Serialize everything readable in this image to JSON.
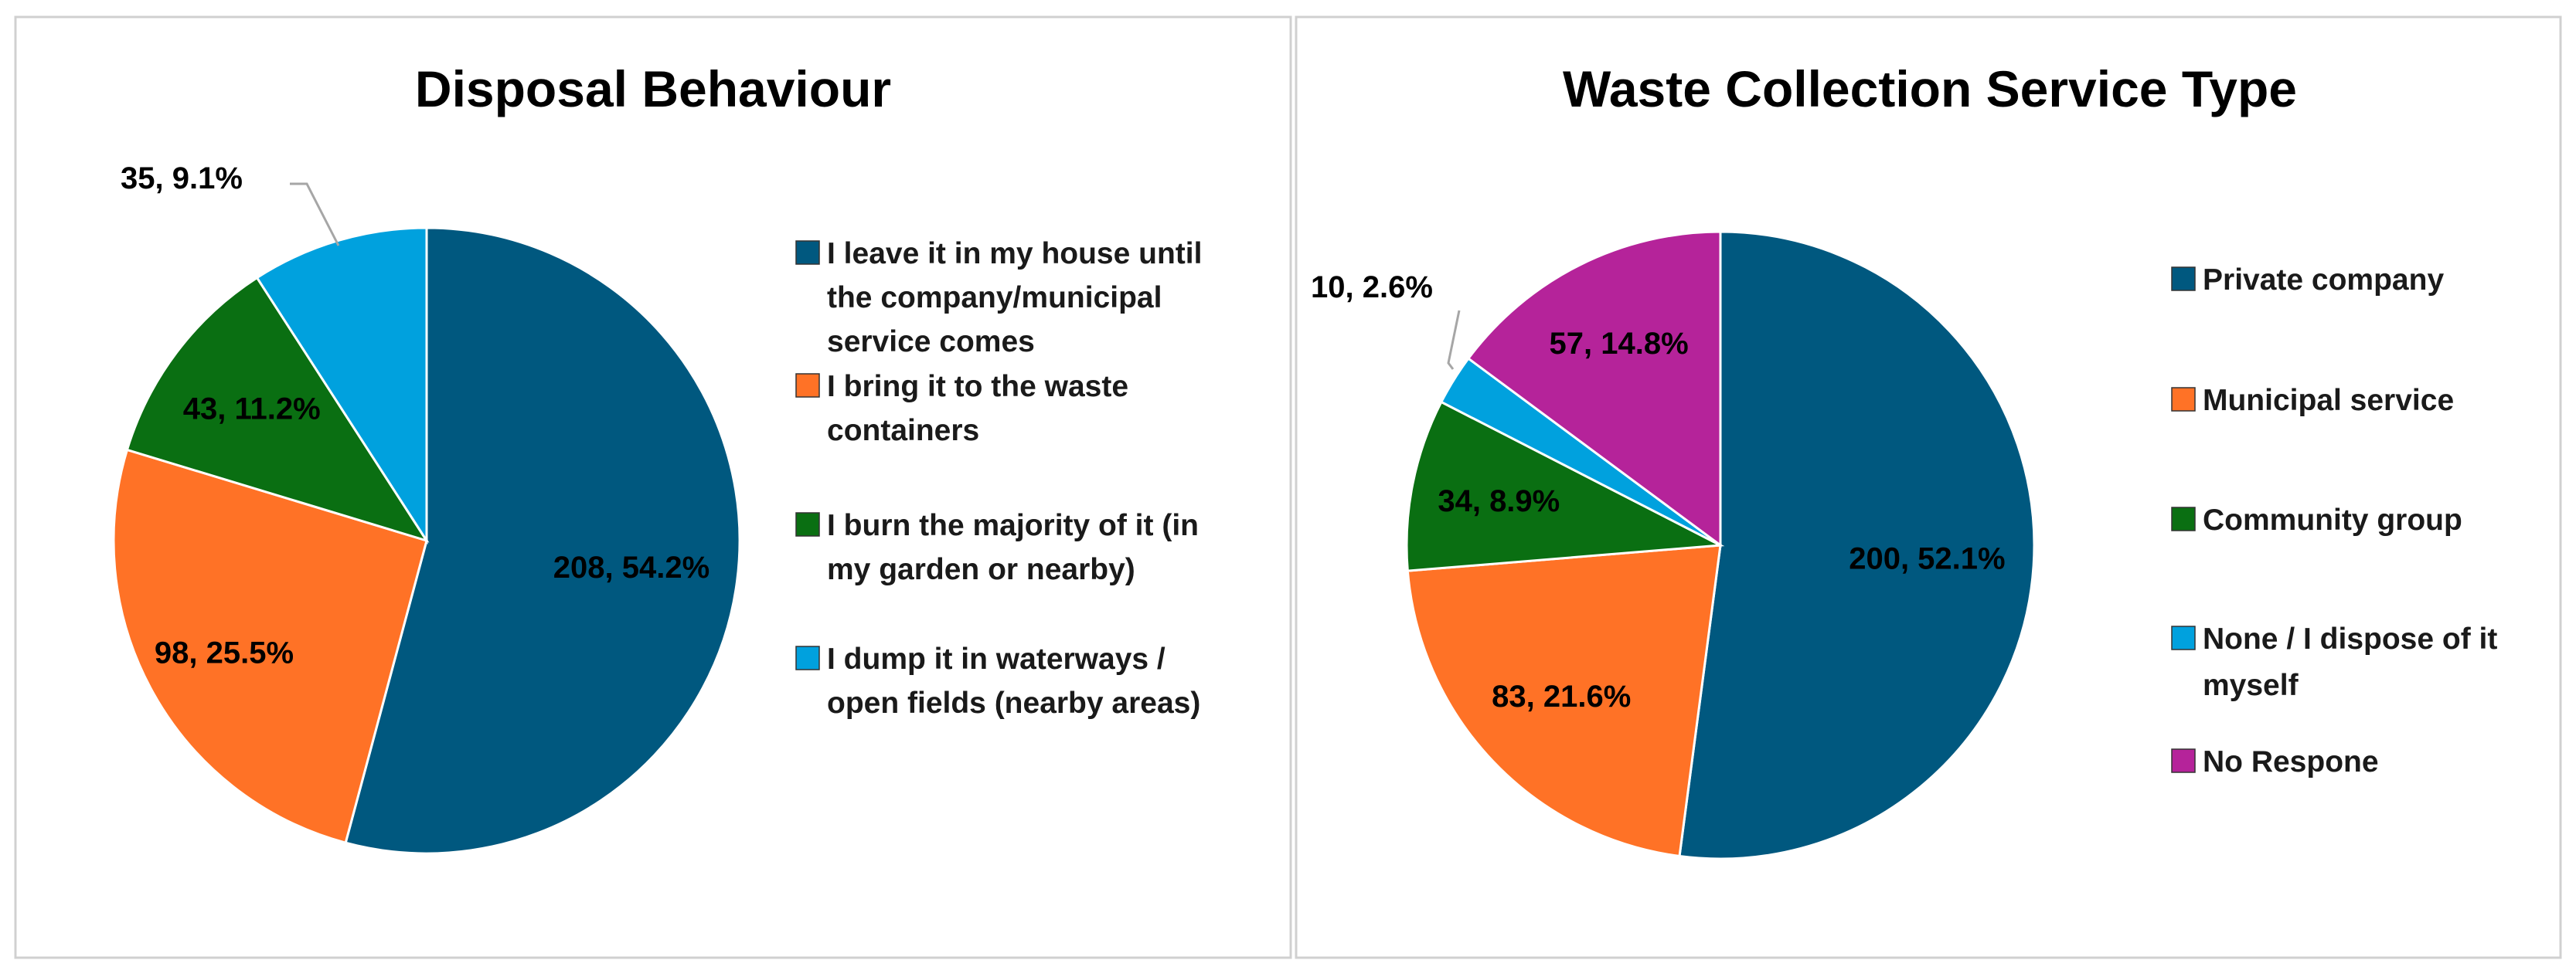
{
  "chart_data": [
    {
      "type": "pie",
      "title": "Disposal Behaviour",
      "categories": [
        "I leave it in my house until the company/municipal service comes",
        "I bring it to the waste containers",
        "I burn the majority of it (in my garden or nearby)",
        "I dump it in waterways / open fields (nearby areas)"
      ],
      "legend_lines": [
        [
          "I leave it in my house until",
          "the company/municipal",
          "service comes"
        ],
        [
          "I bring it to the waste",
          "containers"
        ],
        [
          "I burn the majority of it (in",
          "my garden or nearby)"
        ],
        [
          "I dump it in waterways /",
          "open fields (nearby areas)"
        ]
      ],
      "values": [
        208,
        98,
        43,
        35
      ],
      "percents": [
        "54.2%",
        "25.5%",
        "11.2%",
        "9.1%"
      ],
      "labels": [
        "208, 54.2%",
        "98, 25.5%",
        "43, 11.2%",
        "35, 9.1%"
      ],
      "colors": [
        "#00587F",
        "#FF7226",
        "#0A6F12",
        "#00A1DE"
      ],
      "legend_position": "right"
    },
    {
      "type": "pie",
      "title": "Waste Collection Service Type",
      "categories": [
        "Private company",
        "Municipal service",
        "Community group",
        "None / I dispose of it myself",
        "No Respone"
      ],
      "legend_lines": [
        [
          "Private company"
        ],
        [
          "Municipal service"
        ],
        [
          "Community group"
        ],
        [
          "None / I dispose of it",
          "myself"
        ],
        [
          "No Respone"
        ]
      ],
      "values": [
        200,
        83,
        34,
        10,
        57
      ],
      "percents": [
        "52.1%",
        "21.6%",
        "8.9%",
        "2.6%",
        "14.8%"
      ],
      "labels": [
        "200, 52.1%",
        "83, 21.6%",
        "34, 8.9%",
        "10, 2.6%",
        "57, 14.8%"
      ],
      "colors": [
        "#00587F",
        "#FF7226",
        "#0A6F12",
        "#00A1DE",
        "#B5239A"
      ],
      "legend_position": "right"
    }
  ]
}
